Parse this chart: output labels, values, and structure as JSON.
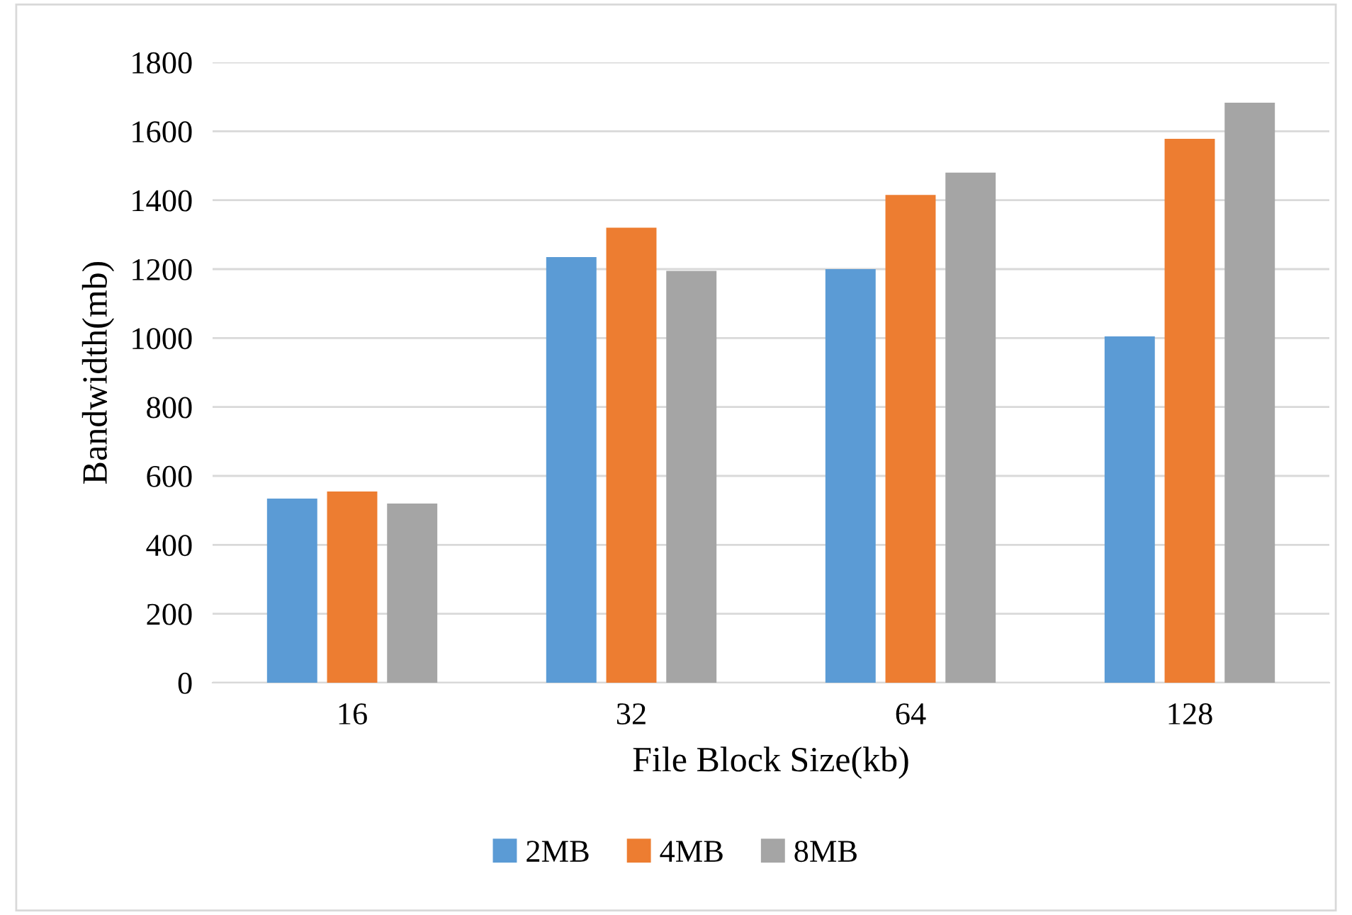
{
  "chart_data": {
    "type": "bar",
    "xlabel": "File Block Size(kb)",
    "ylabel": "Bandwidth(mb)",
    "categories": [
      "16",
      "32",
      "64",
      "128"
    ],
    "series": [
      {
        "name": "2MB",
        "color": "#5b9bd5",
        "values": [
          534,
          1235,
          1200,
          1005
        ]
      },
      {
        "name": "4MB",
        "color": "#ed7d31",
        "values": [
          555,
          1320,
          1415,
          1578
        ]
      },
      {
        "name": "8MB",
        "color": "#a5a5a5",
        "values": [
          520,
          1195,
          1480,
          1683
        ]
      }
    ],
    "ylim": [
      0,
      1800
    ],
    "yticks": [
      0,
      200,
      400,
      600,
      800,
      1000,
      1200,
      1400,
      1600,
      1800
    ],
    "grid": "y",
    "legend": "bottom"
  }
}
